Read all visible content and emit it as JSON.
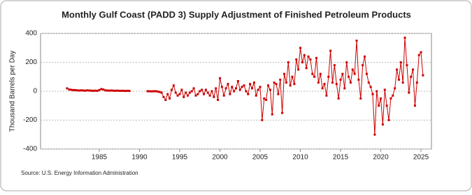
{
  "chart_data": {
    "type": "line",
    "title": "Monthly Gulf Coast (PADD 3) Supply Adjustment of Finished Petroleum Products",
    "y_label": "Thousand Barrels per Day",
    "source": "Source: U.S. Energy Information Administration",
    "x": [
      1981,
      1981.25,
      1981.5,
      1981.75,
      1982,
      1982.25,
      1982.5,
      1982.75,
      1983,
      1983.25,
      1983.5,
      1983.75,
      1984,
      1984.25,
      1984.5,
      1984.75,
      1985,
      1985.25,
      1985.5,
      1985.75,
      1986,
      1986.25,
      1986.5,
      1986.75,
      1987,
      1987.25,
      1987.5,
      1987.75,
      1988,
      1988.25,
      1988.5,
      1988.75,
      1989,
      1989.25,
      1989.5,
      1989.75,
      1990,
      1990.25,
      1990.5,
      1990.75,
      1991,
      1991.25,
      1991.5,
      1991.75,
      1992,
      1992.25,
      1992.5,
      1992.75,
      1993,
      1993.25,
      1993.5,
      1993.75,
      1994,
      1994.25,
      1994.5,
      1994.75,
      1995,
      1995.25,
      1995.5,
      1995.75,
      1996,
      1996.25,
      1996.5,
      1996.75,
      1997,
      1997.25,
      1997.5,
      1997.75,
      1998,
      1998.25,
      1998.5,
      1998.75,
      1999,
      1999.25,
      1999.5,
      1999.75,
      2000,
      2000.25,
      2000.5,
      2000.75,
      2001,
      2001.25,
      2001.5,
      2001.75,
      2002,
      2002.25,
      2002.5,
      2002.75,
      2003,
      2003.25,
      2003.5,
      2003.75,
      2004,
      2004.25,
      2004.5,
      2004.75,
      2005,
      2005.25,
      2005.5,
      2005.75,
      2006,
      2006.25,
      2006.5,
      2006.75,
      2007,
      2007.25,
      2007.5,
      2007.75,
      2008,
      2008.25,
      2008.5,
      2008.75,
      2009,
      2009.25,
      2009.5,
      2009.75,
      2010,
      2010.25,
      2010.5,
      2010.75,
      2011,
      2011.25,
      2011.5,
      2011.75,
      2012,
      2012.25,
      2012.5,
      2012.75,
      2013,
      2013.25,
      2013.5,
      2013.75,
      2014,
      2014.25,
      2014.5,
      2014.75,
      2015,
      2015.25,
      2015.5,
      2015.75,
      2016,
      2016.25,
      2016.5,
      2016.75,
      2017,
      2017.25,
      2017.5,
      2017.75,
      2018,
      2018.25,
      2018.5,
      2018.75,
      2019,
      2019.25,
      2019.5,
      2019.75,
      2020,
      2020.25,
      2020.5,
      2020.75,
      2021,
      2021.25,
      2021.5,
      2021.75,
      2022,
      2022.25,
      2022.5,
      2022.75,
      2023,
      2023.25,
      2023.5,
      2023.75,
      2024,
      2024.25,
      2024.5,
      2024.75,
      2025,
      2025.25
    ],
    "series": [
      {
        "color": "#cc0000",
        "values": [
          20,
          12,
          10,
          8,
          8,
          6,
          5,
          6,
          5,
          4,
          6,
          5,
          4,
          3,
          4,
          3,
          8,
          15,
          12,
          6,
          5,
          4,
          5,
          4,
          3,
          4,
          3,
          3,
          3,
          2,
          3,
          2,
          null,
          null,
          null,
          null,
          null,
          null,
          null,
          null,
          0,
          0,
          -1,
          0,
          0,
          -2,
          -5,
          -10,
          -40,
          -60,
          -20,
          -50,
          10,
          40,
          -10,
          -30,
          -20,
          10,
          -40,
          -10,
          -30,
          -10,
          0,
          20,
          -30,
          -20,
          0,
          10,
          -20,
          10,
          -10,
          -30,
          0,
          -40,
          20,
          -60,
          90,
          30,
          -30,
          20,
          50,
          -20,
          30,
          0,
          20,
          70,
          10,
          30,
          40,
          0,
          -20,
          50,
          20,
          60,
          -30,
          10,
          30,
          -200,
          -50,
          -60,
          40,
          10,
          -160,
          60,
          50,
          -20,
          80,
          -150,
          120,
          60,
          200,
          40,
          100,
          50,
          220,
          150,
          300,
          200,
          250,
          160,
          240,
          220,
          120,
          100,
          230,
          60,
          120,
          20,
          50,
          -30,
          100,
          280,
          60,
          180,
          50,
          -50,
          80,
          120,
          20,
          200,
          100,
          60,
          150,
          120,
          350,
          80,
          -50,
          180,
          240,
          120,
          60,
          30,
          -20,
          -300,
          0,
          -100,
          -50,
          -230,
          10,
          -100,
          -200,
          -50,
          -30,
          20,
          150,
          80,
          200,
          60,
          370,
          180,
          -10,
          100,
          150,
          -100,
          60,
          250,
          270,
          110
        ]
      }
    ],
    "xlim": [
      1977.7,
      2026.3
    ],
    "xticks": [
      1985,
      1990,
      1995,
      2000,
      2005,
      2010,
      2015,
      2020,
      2025
    ],
    "ylim": [
      -400,
      400
    ],
    "yticks": [
      -400,
      -200,
      0,
      200,
      400
    ],
    "grid": true
  }
}
